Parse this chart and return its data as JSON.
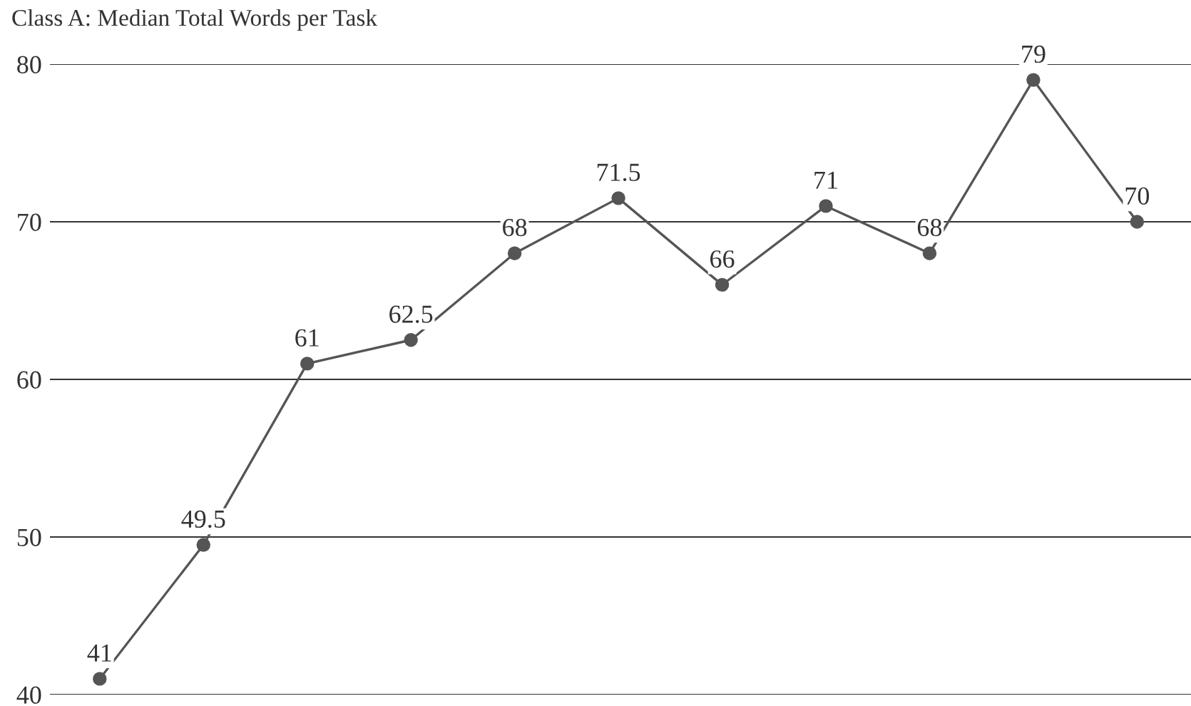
{
  "chart_data": {
    "type": "line",
    "title": "Class A: Median Total Words per Task",
    "categories": [
      null,
      null,
      null,
      null,
      null,
      null,
      null,
      null,
      null,
      null,
      null
    ],
    "series": [
      {
        "color": "#555555",
        "values": [
          41,
          49.5,
          61,
          62.5,
          68,
          71.5,
          66,
          71,
          68,
          79,
          70
        ]
      }
    ],
    "ylim": [
      40,
      80
    ],
    "yticks": [
      40,
      50,
      60,
      70,
      80
    ],
    "grid": "y",
    "marker": "circle",
    "line_style": "solid",
    "data_labels": true
  }
}
